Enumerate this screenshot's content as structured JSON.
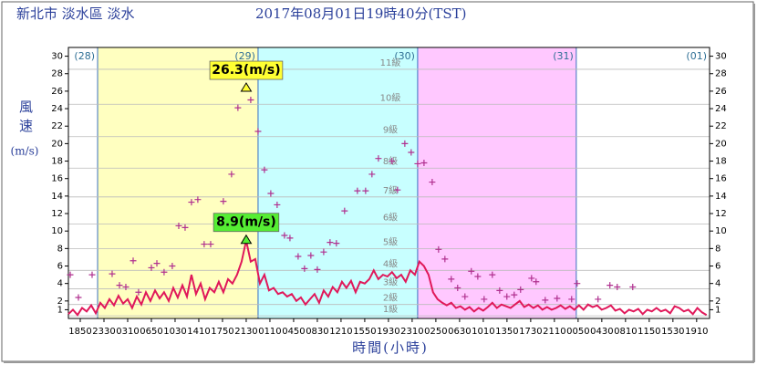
{
  "chart_data": {
    "type": "line",
    "title": "新北市 淡水區 淡水",
    "subtitle": "2017年08月01日19時40分(TST)",
    "y_label_top": "風速",
    "y_label_unit": "(m/s)",
    "x_label": "時間(小時)",
    "xlim": [
      -110,
      5840
    ],
    "ylim": [
      0,
      31
    ],
    "yticks": [
      1,
      2,
      4,
      6,
      8,
      10,
      12,
      14,
      16,
      18,
      20,
      22,
      24,
      26,
      28,
      30
    ],
    "xticks": [
      {
        "value": 0,
        "label": "1850"
      },
      {
        "value": 220,
        "label": "2330"
      },
      {
        "value": 440,
        "label": "0310"
      },
      {
        "value": 660,
        "label": "0650"
      },
      {
        "value": 880,
        "label": "1030"
      },
      {
        "value": 1100,
        "label": "1410"
      },
      {
        "value": 1320,
        "label": "1750"
      },
      {
        "value": 1540,
        "label": "2130"
      },
      {
        "value": 1760,
        "label": "0110"
      },
      {
        "value": 1980,
        "label": "0450"
      },
      {
        "value": 2200,
        "label": "0830"
      },
      {
        "value": 2420,
        "label": "1210"
      },
      {
        "value": 2640,
        "label": "1550"
      },
      {
        "value": 2860,
        "label": "1930"
      },
      {
        "value": 3080,
        "label": "2310"
      },
      {
        "value": 3300,
        "label": "0250"
      },
      {
        "value": 3520,
        "label": "0630"
      },
      {
        "value": 3740,
        "label": "1010"
      },
      {
        "value": 3960,
        "label": "1350"
      },
      {
        "value": 4180,
        "label": "1730"
      },
      {
        "value": 4400,
        "label": "2110"
      },
      {
        "value": 4620,
        "label": "0050"
      },
      {
        "value": 4840,
        "label": "0430"
      },
      {
        "value": 5060,
        "label": "0810"
      },
      {
        "value": 5280,
        "label": "1150"
      },
      {
        "value": 5500,
        "label": "1530"
      },
      {
        "value": 5720,
        "label": "1910"
      }
    ],
    "day_boundaries": [
      161,
      1650,
      3131,
      4603
    ],
    "days": [
      {
        "label": "(28)",
        "color": "#ffffff"
      },
      {
        "label": "(29)",
        "color": "#ffffc0"
      },
      {
        "label": "(30)",
        "color": "#c8ffff"
      },
      {
        "label": "(31)",
        "color": "#ffc8ff"
      },
      {
        "label": "(01)",
        "color": "#ffffff"
      }
    ],
    "levels": [
      {
        "value": 0.3,
        "label": "1級"
      },
      {
        "value": 1.6,
        "label": "2級"
      },
      {
        "value": 3.4,
        "label": "3級"
      },
      {
        "value": 5.5,
        "label": "4級"
      },
      {
        "value": 8.0,
        "label": "5級"
      },
      {
        "value": 10.8,
        "label": "6級"
      },
      {
        "value": 13.9,
        "label": "7級"
      },
      {
        "value": 17.2,
        "label": "8級"
      },
      {
        "value": 20.8,
        "label": "9級"
      },
      {
        "value": 24.5,
        "label": "10級"
      },
      {
        "value": 28.5,
        "label": "11級"
      }
    ],
    "series": [
      {
        "style": "line",
        "color": "#e0185a",
        "x": [
          -110,
          -68,
          -25,
          17,
          59,
          102,
          144,
          186,
          228,
          271,
          313,
          355,
          398,
          440,
          482,
          525,
          567,
          609,
          651,
          694,
          736,
          778,
          821,
          863,
          905,
          948,
          990,
          1032,
          1074,
          1117,
          1159,
          1201,
          1244,
          1286,
          1328,
          1371,
          1413,
          1455,
          1497,
          1540,
          1582,
          1624,
          1667,
          1709,
          1751,
          1794,
          1836,
          1878,
          1920,
          1963,
          2005,
          2047,
          2090,
          2132,
          2174,
          2217,
          2259,
          2301,
          2343,
          2386,
          2428,
          2470,
          2513,
          2555,
          2597,
          2640,
          2682,
          2724,
          2766,
          2809,
          2851,
          2893,
          2936,
          2978,
          3020,
          3063,
          3105,
          3147,
          3189,
          3232,
          3274,
          3316,
          3359,
          3401,
          3443,
          3486,
          3528,
          3570,
          3612,
          3655,
          3697,
          3739,
          3782,
          3824,
          3866,
          3909,
          3951,
          3993,
          4035,
          4078,
          4120,
          4162,
          4205,
          4247,
          4289,
          4332,
          4374,
          4416,
          4458,
          4501,
          4543,
          4585,
          4628,
          4670,
          4712,
          4755,
          4797,
          4839,
          4881,
          4924,
          4966,
          5008,
          5051,
          5093,
          5135,
          5178,
          5220,
          5262,
          5304,
          5347,
          5389,
          5431,
          5474,
          5516,
          5558,
          5601,
          5643,
          5685,
          5727,
          5770,
          5812
        ],
        "values": [
          0.5,
          1,
          0.4,
          1.2,
          0.8,
          1.5,
          0.6,
          1.8,
          1.2,
          2.2,
          1.5,
          2.6,
          1.7,
          2.2,
          1.2,
          2.5,
          1.6,
          3,
          2,
          3.2,
          2.3,
          3,
          2,
          3.5,
          2.4,
          3.8,
          2.5,
          5,
          2.8,
          4,
          2.2,
          3.5,
          3,
          4.2,
          3,
          4.5,
          4,
          5,
          6.5,
          8.9,
          6.5,
          6.8,
          4,
          5,
          3.2,
          3.5,
          2.8,
          3,
          2.5,
          2.8,
          2,
          2.4,
          1.6,
          2.2,
          2.8,
          1.8,
          3.2,
          2.5,
          3.6,
          3,
          4.2,
          3.5,
          4.3,
          3,
          4.2,
          4,
          4.5,
          5.5,
          4.5,
          5,
          4.8,
          5.3,
          4.6,
          5,
          4.2,
          5.5,
          5,
          6.5,
          6,
          5,
          3,
          2.2,
          1.8,
          1.5,
          1.8,
          1.2,
          1.4,
          1,
          1.3,
          0.8,
          1.2,
          0.9,
          1.3,
          1.8,
          1.2,
          1.6,
          1.4,
          1.2,
          1.6,
          2,
          1.3,
          1.6,
          1.2,
          1.5,
          1,
          1.3,
          1,
          1.2,
          1.5,
          1.1,
          1.4,
          1,
          1.5,
          1,
          1.6,
          1.3,
          1.5,
          1,
          1.2,
          1.5,
          0.9,
          1.1,
          0.6,
          1,
          0.8,
          1.1,
          0.5,
          1,
          0.8,
          1.2,
          0.8,
          1,
          0.6,
          1.4,
          1.2,
          0.8,
          1,
          0.5,
          1.2,
          0.7,
          0.4
        ]
      },
      {
        "style": "plus",
        "color": "#b0308f",
        "x": [
          -93,
          -17,
          110,
          296,
          364,
          423,
          491,
          541,
          660,
          711,
          778,
          854,
          914,
          973,
          1032,
          1091,
          1150,
          1210,
          1269,
          1328,
          1404,
          1463,
          1582,
          1650,
          1709,
          1768,
          1827,
          1895,
          1946,
          2022,
          2081,
          2140,
          2200,
          2259,
          2318,
          2377,
          2453,
          2572,
          2648,
          2707,
          2767,
          2893,
          2944,
          3012,
          3071,
          3131,
          3190,
          3266,
          3325,
          3384,
          3443,
          3502,
          3570,
          3629,
          3689,
          3748,
          3824,
          3892,
          3959,
          4027,
          4086,
          4188,
          4230,
          4315,
          4425,
          4560,
          4611,
          4805,
          4915,
          4983,
          5127
        ],
        "values": [
          5,
          2.4,
          5,
          5.1,
          3.8,
          3.6,
          6.6,
          3,
          5.8,
          6.3,
          5.3,
          6,
          10.6,
          10.4,
          13.3,
          13.6,
          8.5,
          8.5,
          11.6,
          13.4,
          16.5,
          24.1,
          25,
          21.4,
          17,
          14.3,
          13,
          9.5,
          9.2,
          7.1,
          5.7,
          7.2,
          5.6,
          7.6,
          8.7,
          8.6,
          12.3,
          14.6,
          14.6,
          16.5,
          18.3,
          18,
          14.7,
          20,
          19,
          17.7,
          17.8,
          15.6,
          7.9,
          6.8,
          4.5,
          3.5,
          2.5,
          5.4,
          4.8,
          2.2,
          5,
          3.2,
          2.5,
          2.7,
          3.3,
          4.6,
          4.2,
          2.1,
          2.3,
          2.2,
          4,
          2.2,
          3.8,
          3.6,
          3.6
        ]
      }
    ],
    "annotations": [
      {
        "x": 1540,
        "value": 26.3,
        "label": "26.3(m/s)",
        "color": "#ffff33"
      },
      {
        "x": 1540,
        "value": 8.9,
        "label": "8.9(m/s)",
        "color": "#55ee33"
      }
    ]
  }
}
